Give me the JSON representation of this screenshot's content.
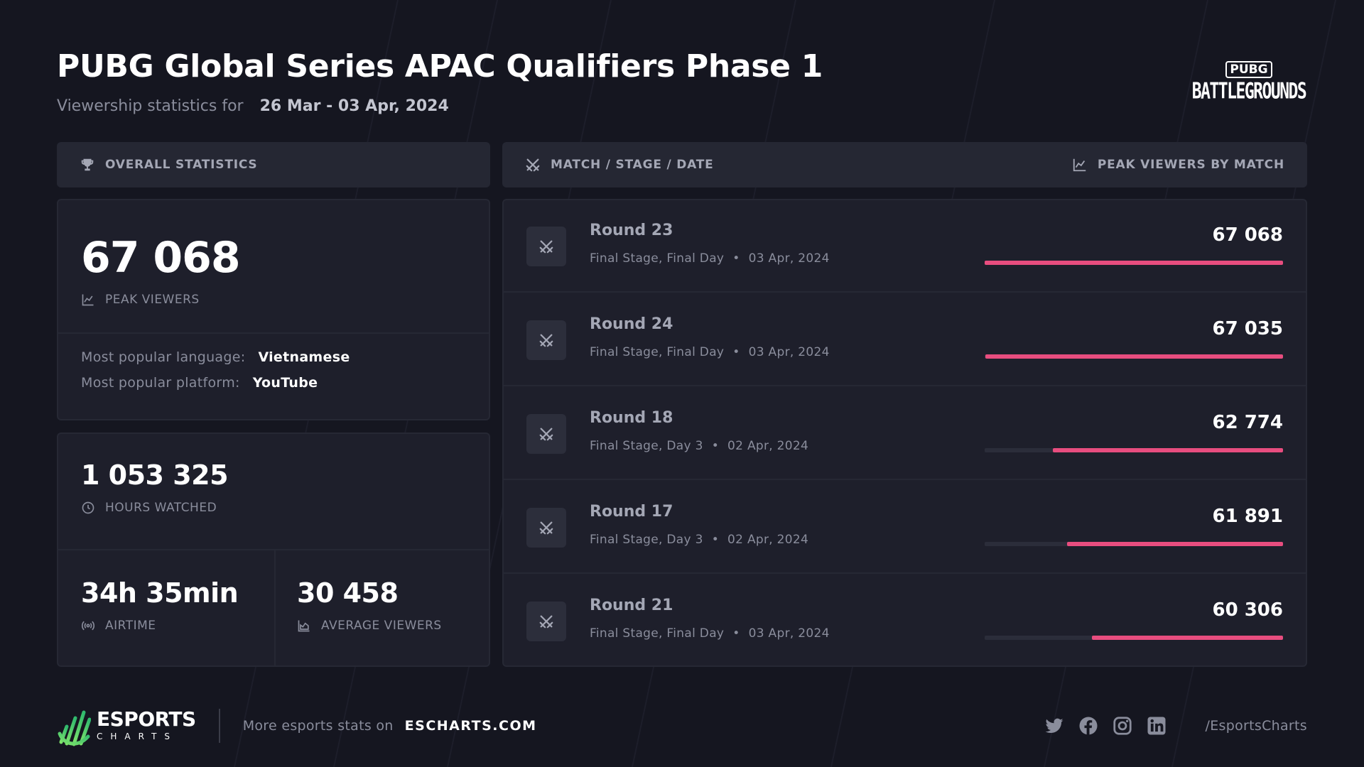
{
  "header": {
    "title": "PUBG Global Series APAC Qualifiers Phase 1",
    "subtitle_label": "Viewership statistics for",
    "date_range": "26 Mar - 03 Apr, 2024",
    "game_logo_top": "PUBG",
    "game_logo_bottom": "BATTLEGROUNDS"
  },
  "overall": {
    "heading": "OVERALL STATISTICS",
    "peak_viewers": {
      "value": "67 068",
      "label": "PEAK VIEWERS"
    },
    "language": {
      "label": "Most popular language:",
      "value": "Vietnamese"
    },
    "platform": {
      "label": "Most popular platform:",
      "value": "YouTube"
    },
    "hours_watched": {
      "value": "1 053 325",
      "label": "HOURS WATCHED"
    },
    "airtime": {
      "value": "34h 35min",
      "label": "AIRTIME"
    },
    "average_viewers": {
      "value": "30 458",
      "label": "AVERAGE VIEWERS"
    }
  },
  "matches": {
    "heading_left": "MATCH / STAGE / DATE",
    "heading_right": "PEAK VIEWERS BY MATCH",
    "accent_color": "#e84d7f",
    "items": [
      {
        "name": "Round 23",
        "stage": "Final Stage, Final Day",
        "date": "03 Apr, 2024",
        "peak": "67 068",
        "peak_value": 67068
      },
      {
        "name": "Round 24",
        "stage": "Final Stage, Final Day",
        "date": "03 Apr, 2024",
        "peak": "67 035",
        "peak_value": 67035
      },
      {
        "name": "Round 18",
        "stage": "Final Stage, Day 3",
        "date": "02 Apr, 2024",
        "peak": "62 774",
        "peak_value": 62774
      },
      {
        "name": "Round 17",
        "stage": "Final Stage, Day 3",
        "date": "02 Apr, 2024",
        "peak": "61 891",
        "peak_value": 61891
      },
      {
        "name": "Round 21",
        "stage": "Final Stage, Final Day",
        "date": "03 Apr, 2024",
        "peak": "60 306",
        "peak_value": 60306
      }
    ]
  },
  "footer": {
    "brand_top": "ESPORTS",
    "brand_bottom": "CHARTS",
    "more_label": "More esports stats on",
    "site": "ESCHARTS.COM",
    "socials": [
      "twitter-icon",
      "facebook-icon",
      "instagram-icon",
      "linkedin-icon"
    ],
    "handle": "/EsportsCharts"
  }
}
